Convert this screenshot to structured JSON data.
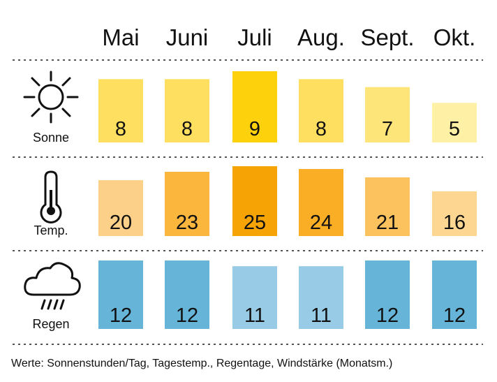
{
  "chart_data": {
    "type": "table",
    "categories": [
      "Mai",
      "Juni",
      "Juli",
      "Aug.",
      "Sept.",
      "Okt."
    ],
    "series": [
      {
        "name": "Sonne",
        "icon": "sun-icon",
        "values": [
          8,
          8,
          9,
          8,
          7,
          5
        ],
        "colors": [
          "#fedf5f",
          "#fedf5f",
          "#fdd20c",
          "#fedf5f",
          "#fee57a",
          "#fef0a4"
        ]
      },
      {
        "name": "Temp.",
        "icon": "thermometer-icon",
        "values": [
          20,
          23,
          25,
          24,
          21,
          16
        ],
        "colors": [
          "#fdd08a",
          "#fbb73d",
          "#f6a306",
          "#f9ae26",
          "#fcc25e",
          "#fdd792"
        ]
      },
      {
        "name": "Regen",
        "icon": "rain-cloud-icon",
        "values": [
          12,
          12,
          11,
          11,
          12,
          12
        ],
        "colors": [
          "#67b4d9",
          "#67b4d9",
          "#97cbe6",
          "#97cbe6",
          "#67b4d9",
          "#67b4d9"
        ]
      }
    ]
  },
  "footnote": "Werte: Sonnenstunden/Tag, Tagestemp., Regentage, Windstärke (Monatsm.)"
}
